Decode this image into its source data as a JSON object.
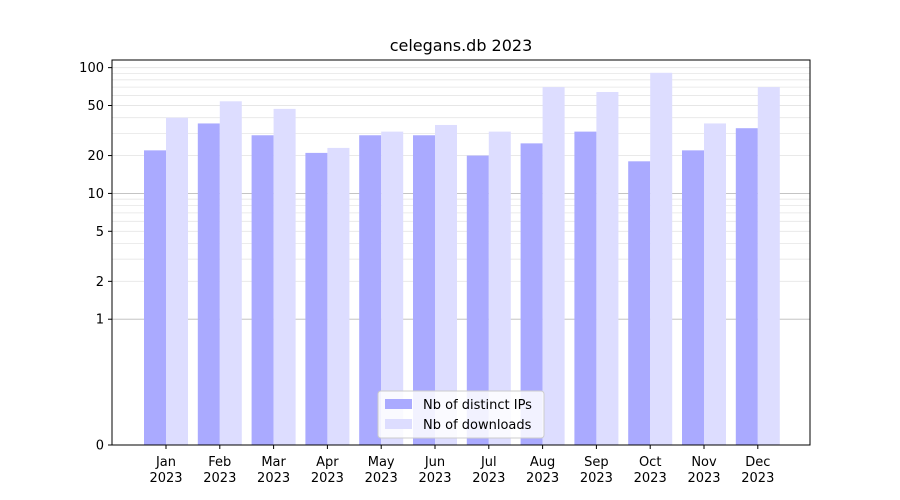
{
  "chart_data": {
    "type": "bar",
    "title": "celegans.db 2023",
    "xlabel": "",
    "ylabel": "",
    "y_scale": "symlog",
    "ylim": [
      0,
      115
    ],
    "y_ticks": [
      0,
      1,
      2,
      5,
      10,
      20,
      50,
      100
    ],
    "categories": [
      "Jan\n2023",
      "Feb\n2023",
      "Mar\n2023",
      "Apr\n2023",
      "May\n2023",
      "Jun\n2023",
      "Jul\n2023",
      "Aug\n2023",
      "Sep\n2023",
      "Oct\n2023",
      "Nov\n2023",
      "Dec\n2023"
    ],
    "series": [
      {
        "name": "Nb of distinct IPs",
        "values": [
          22,
          36,
          29,
          21,
          29,
          29,
          20,
          25,
          31,
          18,
          22,
          33
        ],
        "color": "#aaaaff"
      },
      {
        "name": "Nb of downloads",
        "values": [
          40,
          54,
          47,
          23,
          31,
          35,
          31,
          70,
          64,
          91,
          36,
          70
        ],
        "color": "#ddddff"
      }
    ],
    "grid": true,
    "legend_placement": "lower center"
  }
}
